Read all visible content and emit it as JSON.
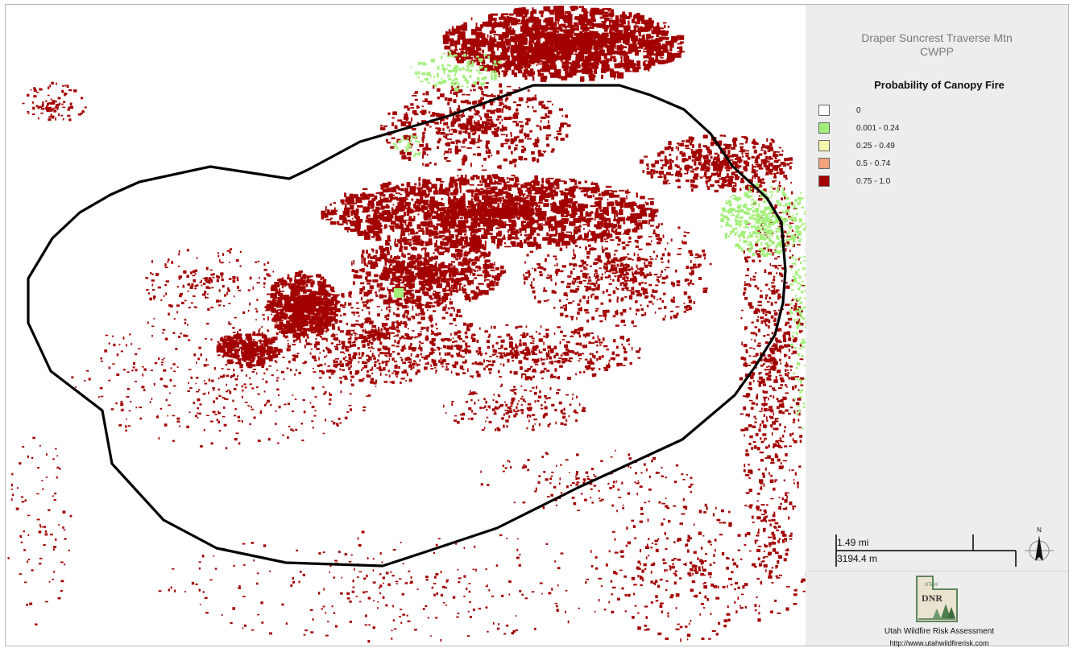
{
  "title": "Draper Suncrest Traverse Mtn\nCWPP",
  "legend": {
    "title": "Probability of Canopy Fire",
    "items": [
      {
        "label": "0",
        "color": "#ffffff"
      },
      {
        "label": "0.001 - 0.24",
        "color": "#a3ef7a"
      },
      {
        "label": "0.25 - 0.49",
        "color": "#f7f7ac"
      },
      {
        "label": "0.5 - 0.74",
        "color": "#f4a27c"
      },
      {
        "label": "0.75 - 1.0",
        "color": "#a30000"
      }
    ]
  },
  "scale": {
    "miles": "1.49 mi",
    "meters": "3194.4 m"
  },
  "north_label": "N",
  "logo": {
    "top_text": "UTAH",
    "main_text": "DNR"
  },
  "credit": {
    "name": "Utah Wildfire Risk Assessment",
    "url": "http://www.utahwildfirerisk.com"
  },
  "colors": {
    "fire_high": "#a30000",
    "fire_low": "#a3ef7a",
    "boundary": "#000000",
    "panel": "#ededed"
  }
}
